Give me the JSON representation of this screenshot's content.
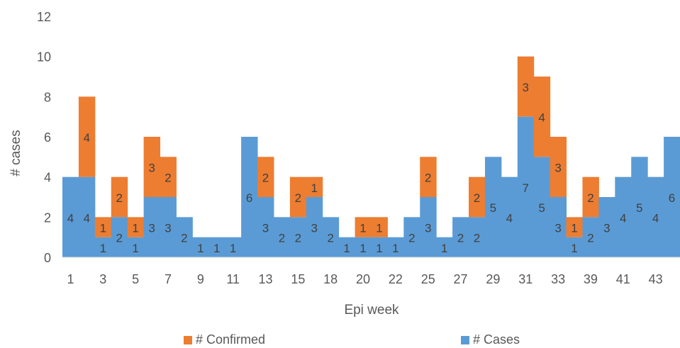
{
  "chart_data": {
    "type": "bar",
    "stacked": true,
    "xlabel": "Epi week",
    "ylabel": "# cases",
    "ylim": [
      0,
      12
    ],
    "yticks": [
      0,
      2,
      4,
      6,
      8,
      10,
      12
    ],
    "grid": false,
    "legend_position": "bottom",
    "categories": [
      "1",
      "2?",
      "3",
      "4?",
      "5",
      "6?",
      "7",
      "8?",
      "9",
      "10?",
      "11",
      "12?",
      "13",
      "14?",
      "15",
      "16?",
      "18",
      "19?",
      "20",
      "21?",
      "22",
      "24?",
      "25",
      "26?",
      "27",
      "28?",
      "29",
      "30?",
      "31",
      "32?",
      "33",
      "34?",
      "39",
      "40?",
      "41",
      "42?",
      "43",
      "44?"
    ],
    "tick_labels": [
      "1",
      "3",
      "5",
      "7",
      "9",
      "11",
      "13",
      "15",
      "18",
      "20",
      "22",
      "25",
      "27",
      "29",
      "31",
      "33",
      "39",
      "41",
      "43"
    ],
    "series": [
      {
        "name": "# Cases",
        "color": "#5B9BD5",
        "values": [
          4,
          4,
          1,
          2,
          1,
          3,
          3,
          2,
          1,
          1,
          1,
          6,
          3,
          2,
          2,
          3,
          2,
          1,
          1,
          1,
          1,
          2,
          3,
          1,
          2,
          2,
          5,
          4,
          7,
          5,
          3,
          1,
          2,
          3,
          4,
          5,
          4,
          6
        ]
      },
      {
        "name": "# Confirmed",
        "color": "#ED7D31",
        "values": [
          0,
          4,
          1,
          2,
          1,
          3,
          2,
          0,
          0,
          0,
          0,
          0,
          2,
          0,
          2,
          1,
          0,
          0,
          1,
          1,
          0,
          0,
          2,
          0,
          0,
          2,
          0,
          0,
          3,
          4,
          3,
          1,
          2,
          0,
          0,
          0,
          0,
          0
        ]
      }
    ],
    "legend": [
      "# Confirmed",
      "# Cases"
    ]
  }
}
